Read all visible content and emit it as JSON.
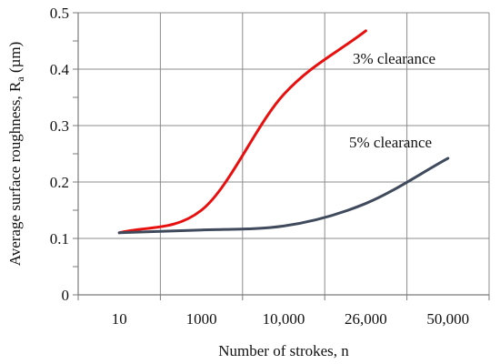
{
  "chart_data": {
    "type": "line",
    "xlabel": "Number of strokes, n",
    "ylabel": "Average surface roughness, R",
    "ylabel_subscript": "a",
    "ylabel_unit": " (µm)",
    "x_tick_labels": [
      "10",
      "1000",
      "10,000",
      "26,000",
      "50,000"
    ],
    "ylim": [
      0,
      0.5
    ],
    "y_ticks": [
      0,
      0.1,
      0.2,
      0.3,
      0.4,
      0.5
    ],
    "y_tick_labels": [
      "0",
      "0.1",
      "0.2",
      "0.3",
      "0.4",
      "0.5"
    ],
    "grid": true,
    "series": [
      {
        "name": "3% clearance",
        "color": "#e8100f",
        "x": [
          "10",
          "1000",
          "10,000",
          "26,000"
        ],
        "values": [
          0.11,
          0.15,
          0.355,
          0.468
        ]
      },
      {
        "name": "5% clearance",
        "color": "#3f4a5c",
        "x": [
          "10",
          "1000",
          "10,000",
          "26,000",
          "50,000"
        ],
        "values": [
          0.11,
          0.115,
          0.122,
          0.162,
          0.242
        ]
      }
    ]
  }
}
